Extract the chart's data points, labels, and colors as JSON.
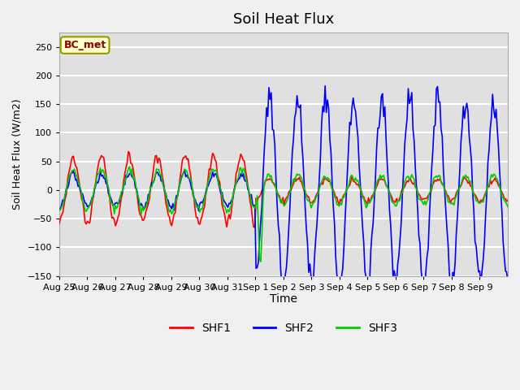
{
  "title": "Soil Heat Flux",
  "xlabel": "Time",
  "ylabel": "Soil Heat Flux (W/m2)",
  "ylim": [
    -150,
    275
  ],
  "yticks": [
    -150,
    -100,
    -50,
    0,
    50,
    100,
    150,
    200,
    250
  ],
  "background_color": "#e0e0e0",
  "grid_color": "#ffffff",
  "fig_bg_color": "#f0f0f0",
  "annotation_text": "BC_met",
  "annotation_bg": "#ffffcc",
  "annotation_border": "#999900",
  "annotation_text_color": "#8B0000",
  "legend_entries": [
    "SHF1",
    "SHF2",
    "SHF3"
  ],
  "legend_colors": [
    "#ff0000",
    "#0000ff",
    "#00cc00"
  ],
  "line_width": 1.2,
  "x_tick_labels": [
    "Aug 25",
    "Aug 26",
    "Aug 27",
    "Aug 28",
    "Aug 29",
    "Aug 30",
    "Aug 31",
    "Sep 1",
    "Sep 2",
    "Sep 3",
    "Sep 4",
    "Sep 5",
    "Sep 6",
    "Sep 7",
    "Sep 8",
    "Sep 9"
  ],
  "n_days": 16
}
